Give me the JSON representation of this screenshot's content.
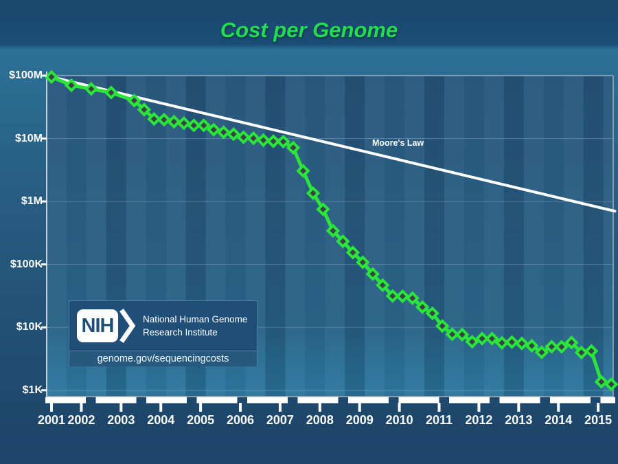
{
  "slide": {
    "title": "Cost per Genome"
  },
  "logo": {
    "acronym": "NIH",
    "org_line1": "National Human Genome",
    "org_line2": "Research Institute",
    "url": "genome.gov/sequencingcosts"
  },
  "colors": {
    "title_green": "#24dd4f",
    "line_green": "#2ce53b",
    "marker_fill": "#394046",
    "moores_white": "#ffffff",
    "axis_gray": "#9fb0bd",
    "plot_bg_top": "#2a5a7f",
    "plot_bg_bottom": "#2e7aa1",
    "nih_navy": "#1f4e78"
  },
  "chart_data": {
    "type": "line",
    "title": "Cost per Genome",
    "legend": "none",
    "grid": "horizontal-decades",
    "y_axis": {
      "scale": "log",
      "tick_labels": [
        "$100M",
        "$10M",
        "$1M",
        "$100K",
        "$10K",
        "$1K"
      ],
      "tick_values": [
        100000000,
        10000000,
        1000000,
        100000,
        10000,
        1000
      ],
      "range": [
        1000,
        100000000
      ]
    },
    "x_axis": {
      "tick_labels": [
        "2001",
        "2002",
        "2003",
        "2004",
        "2005",
        "2006",
        "2007",
        "2008",
        "2009",
        "2010",
        "2011",
        "2012",
        "2013",
        "2014",
        "2015"
      ],
      "tick_years": [
        2001,
        2002,
        2003,
        2004,
        2005,
        2006,
        2007,
        2008,
        2009,
        2010,
        2011,
        2012,
        2013,
        2014,
        2015
      ],
      "range": [
        2001.75,
        2015.92
      ]
    },
    "series": [
      {
        "name": "Cost per Genome",
        "marker": "diamond",
        "points": [
          [
            "Sep-01",
            2001.75,
            95263072
          ],
          [
            "Mar-02",
            2002.25,
            70175437
          ],
          [
            "Sep-02",
            2002.75,
            61448422
          ],
          [
            "Mar-03",
            2003.25,
            53751684
          ],
          [
            "Oct-03",
            2003.83,
            40157554
          ],
          [
            "Jan-04",
            2004.08,
            28780376
          ],
          [
            "Apr-04",
            2004.33,
            20442576
          ],
          [
            "Jul-04",
            2004.58,
            19934346
          ],
          [
            "Oct-04",
            2004.83,
            18519312
          ],
          [
            "Jan-05",
            2005.08,
            17534970
          ],
          [
            "Apr-05",
            2005.33,
            16159699
          ],
          [
            "Jul-05",
            2005.58,
            16180224
          ],
          [
            "Oct-05",
            2005.83,
            13801124
          ],
          [
            "Jan-06",
            2006.08,
            12585659
          ],
          [
            "Apr-06",
            2006.33,
            11732535
          ],
          [
            "Jul-06",
            2006.58,
            10474556
          ],
          [
            "Oct-06",
            2006.83,
            10115580
          ],
          [
            "Jan-07",
            2007.08,
            9408739
          ],
          [
            "Apr-07",
            2007.33,
            9047003
          ],
          [
            "Jul-07",
            2007.58,
            8927342
          ],
          [
            "Oct-07",
            2007.83,
            7147571
          ],
          [
            "Jan-08",
            2008.08,
            3063820
          ],
          [
            "Apr-08",
            2008.33,
            1352982
          ],
          [
            "Jul-08",
            2008.58,
            752080
          ],
          [
            "Oct-08",
            2008.83,
            342502
          ],
          [
            "Jan-09",
            2009.08,
            232735
          ],
          [
            "Apr-09",
            2009.33,
            154714
          ],
          [
            "Jul-09",
            2009.58,
            108065
          ],
          [
            "Oct-09",
            2009.83,
            70333
          ],
          [
            "Jan-10",
            2010.08,
            46774
          ],
          [
            "Apr-10",
            2010.33,
            31512
          ],
          [
            "Jul-10",
            2010.58,
            31125
          ],
          [
            "Oct-10",
            2010.83,
            29092
          ],
          [
            "Jan-11",
            2011.08,
            20963
          ],
          [
            "Apr-11",
            2011.33,
            16712
          ],
          [
            "Jul-11",
            2011.58,
            10497
          ],
          [
            "Oct-11",
            2011.83,
            7743
          ],
          [
            "Jan-12",
            2012.08,
            7666
          ],
          [
            "Apr-12",
            2012.33,
            5901
          ],
          [
            "Jul-12",
            2012.58,
            6618
          ],
          [
            "Oct-12",
            2012.83,
            6618
          ],
          [
            "Jan-13",
            2013.08,
            5671
          ],
          [
            "Apr-13",
            2013.33,
            5826
          ],
          [
            "Jul-13",
            2013.58,
            5550
          ],
          [
            "Oct-13",
            2013.83,
            5096
          ],
          [
            "Jan-14",
            2014.08,
            4008
          ],
          [
            "Apr-14",
            2014.33,
            4920
          ],
          [
            "Jul-14",
            2014.58,
            4905
          ],
          [
            "Oct-14",
            2014.83,
            5731
          ],
          [
            "Jan-15",
            2015.08,
            3970
          ],
          [
            "Apr-15",
            2015.33,
            4211
          ],
          [
            "Jul-15",
            2015.58,
            1363
          ],
          [
            "Oct-15",
            2015.83,
            1245
          ]
        ]
      },
      {
        "name": "Moore's Law",
        "style": "straight-reference-line",
        "start_t": 2001.75,
        "start_value": 95263072,
        "halving_period_years": 2,
        "end_t": 2015.92
      }
    ]
  }
}
